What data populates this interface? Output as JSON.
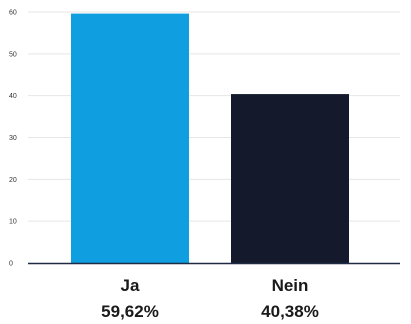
{
  "chart_data": {
    "type": "bar",
    "categories": [
      "Ja",
      "Nein"
    ],
    "values": [
      59.62,
      40.38
    ],
    "value_labels": [
      "59,62%",
      "40,38%"
    ],
    "colors": [
      "#0f9fe0",
      "#141a2c"
    ],
    "ylim": [
      0,
      60
    ],
    "yticks": [
      0,
      10,
      20,
      30,
      40,
      50,
      60
    ],
    "ytick_labels": [
      "0",
      "10",
      "20",
      "30",
      "40",
      "50",
      "60"
    ],
    "title": "",
    "xlabel": "",
    "ylabel": "",
    "grid": true,
    "grid_color": "#e6e6e6",
    "axis_color": "#1f2a44"
  }
}
